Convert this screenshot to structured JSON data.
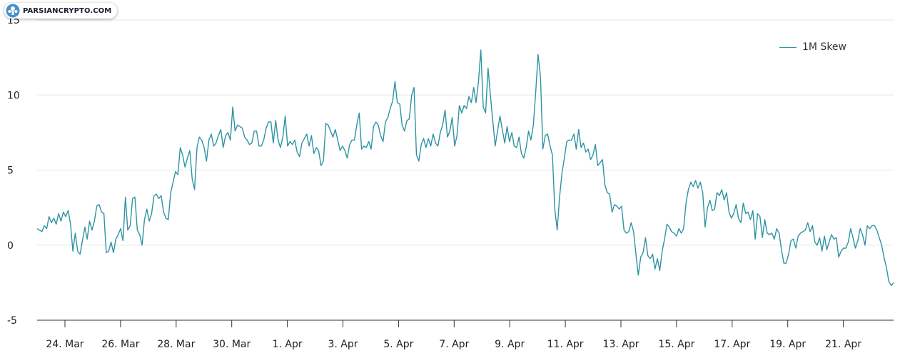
{
  "watermark": {
    "text": "PARSIANCRYPTO.COM"
  },
  "colors": {
    "line": "#2e93a3",
    "grid": "#e6e6e6",
    "axis": "#333333",
    "text": "#222222",
    "logo": "#4a90c8"
  },
  "chart_data": {
    "type": "line",
    "series": [
      {
        "name": "1M Skew",
        "values": [
          1.1,
          1.0,
          0.9,
          1.3,
          1.1,
          1.9,
          1.5,
          1.8,
          1.4,
          2.1,
          1.6,
          2.2,
          1.9,
          2.3,
          1.4,
          -0.4,
          0.8,
          -0.4,
          -0.6,
          0.3,
          1.2,
          0.4,
          1.6,
          1.0,
          1.6,
          2.6,
          2.7,
          2.2,
          2.1,
          -0.5,
          -0.4,
          0.2,
          -0.5,
          0.4,
          0.7,
          1.1,
          0.3,
          3.2,
          1.0,
          1.3,
          3.1,
          3.2,
          1.0,
          0.7,
          0.0,
          1.7,
          2.4,
          1.6,
          2.1,
          3.3,
          3.4,
          3.1,
          3.3,
          2.2,
          1.8,
          1.7,
          3.5,
          4.2,
          4.9,
          4.7,
          6.5,
          6.0,
          5.2,
          5.8,
          6.3,
          4.4,
          3.7,
          6.5,
          7.2,
          7.0,
          6.5,
          5.6,
          7.0,
          7.4,
          6.6,
          6.8,
          7.3,
          7.7,
          6.5,
          7.3,
          7.5,
          7.0,
          9.2,
          7.6,
          8.0,
          7.9,
          7.8,
          7.2,
          7.0,
          6.7,
          6.8,
          7.6,
          7.6,
          6.6,
          6.6,
          7.0,
          7.8,
          8.2,
          8.2,
          6.8,
          8.3,
          7.0,
          6.5,
          7.2,
          8.6,
          6.6,
          6.9,
          6.7,
          7.0,
          6.2,
          5.9,
          6.8,
          7.1,
          7.4,
          6.6,
          7.3,
          6.1,
          6.5,
          6.3,
          5.3,
          5.6,
          8.1,
          8.0,
          7.6,
          7.2,
          7.7,
          7.0,
          6.3,
          6.6,
          6.3,
          5.8,
          6.7,
          7.0,
          7.0,
          8.0,
          8.8,
          6.4,
          6.6,
          6.5,
          6.9,
          6.4,
          7.9,
          8.2,
          8.0,
          7.3,
          6.9,
          8.2,
          8.5,
          9.1,
          9.6,
          10.9,
          9.5,
          9.4,
          8.0,
          7.6,
          8.3,
          8.4,
          10.0,
          10.5,
          6.0,
          5.6,
          6.7,
          7.1,
          6.5,
          7.1,
          6.6,
          7.4,
          6.8,
          6.6,
          7.5,
          8.0,
          9.0,
          7.2,
          7.6,
          8.5,
          6.6,
          7.3,
          9.3,
          8.8,
          9.3,
          9.1,
          9.9,
          9.5,
          10.5,
          9.5,
          10.9,
          13.0,
          9.2,
          8.8,
          11.8,
          10.0,
          8.3,
          6.6,
          7.6,
          8.6,
          7.7,
          6.8,
          7.9,
          6.9,
          7.5,
          6.6,
          6.5,
          7.2,
          6.1,
          5.8,
          6.5,
          7.6,
          7.0,
          8.0,
          10.2,
          12.7,
          11.2,
          6.4,
          7.3,
          7.4,
          6.6,
          6.0,
          2.4,
          1.0,
          3.2,
          4.8,
          5.8,
          6.9,
          7.0,
          7.0,
          7.4,
          6.4,
          7.7,
          6.5,
          6.8,
          6.2,
          6.4,
          5.7,
          6.0,
          6.7,
          5.3,
          5.5,
          5.7,
          4.0,
          3.5,
          3.4,
          2.2,
          2.7,
          2.6,
          2.4,
          2.6,
          1.0,
          0.8,
          0.9,
          1.5,
          0.9,
          -0.6,
          -2.0,
          -0.8,
          -0.5,
          0.5,
          -0.7,
          -0.9,
          -0.6,
          -1.6,
          -0.9,
          -1.7,
          -0.4,
          0.4,
          1.4,
          1.2,
          0.9,
          0.8,
          0.6,
          1.1,
          0.8,
          1.1,
          2.8,
          3.7,
          4.2,
          3.9,
          4.3,
          3.8,
          4.2,
          3.5,
          1.2,
          2.5,
          3.0,
          2.3,
          2.4,
          3.5,
          3.3,
          3.7,
          3.0,
          3.5,
          2.2,
          1.8,
          2.1,
          2.7,
          1.8,
          1.5,
          2.8,
          2.1,
          2.2,
          1.7,
          2.3,
          0.4,
          2.1,
          1.9,
          0.5,
          1.7,
          0.8,
          0.7,
          0.8,
          0.4,
          1.1,
          0.8,
          -0.3,
          -1.2,
          -1.2,
          -0.6,
          0.3,
          0.4,
          -0.2,
          0.6,
          0.8,
          0.9,
          1.0,
          1.5,
          0.9,
          1.3,
          0.2,
          0.0,
          0.5,
          -0.4,
          0.6,
          -0.3,
          0.2,
          0.7,
          0.4,
          0.5,
          -0.8,
          -0.4,
          -0.2,
          -0.2,
          0.2,
          1.1,
          0.5,
          -0.2,
          0.3,
          1.1,
          0.7,
          0.0,
          1.3,
          1.1,
          1.3,
          1.3,
          1.0,
          0.5,
          0.0,
          -0.8,
          -1.5,
          -2.4,
          -2.7,
          -2.5
        ]
      }
    ],
    "x_tick_labels": [
      "24. Mar",
      "26. Mar",
      "28. Mar",
      "30. Mar",
      "1. Apr",
      "3. Apr",
      "5. Apr",
      "7. Apr",
      "9. Apr",
      "11. Apr",
      "13. Apr",
      "15. Apr",
      "17. Apr",
      "19. Apr",
      "21. Apr"
    ],
    "y_ticks": [
      -5,
      0,
      5,
      10,
      15
    ],
    "y_tick_labels": [
      "-5",
      "0",
      "5",
      "10",
      "15"
    ],
    "ylim": [
      -5,
      15
    ],
    "title": "",
    "xlabel": "",
    "ylabel": "",
    "grid": "horizontal",
    "legend": "top-right"
  }
}
